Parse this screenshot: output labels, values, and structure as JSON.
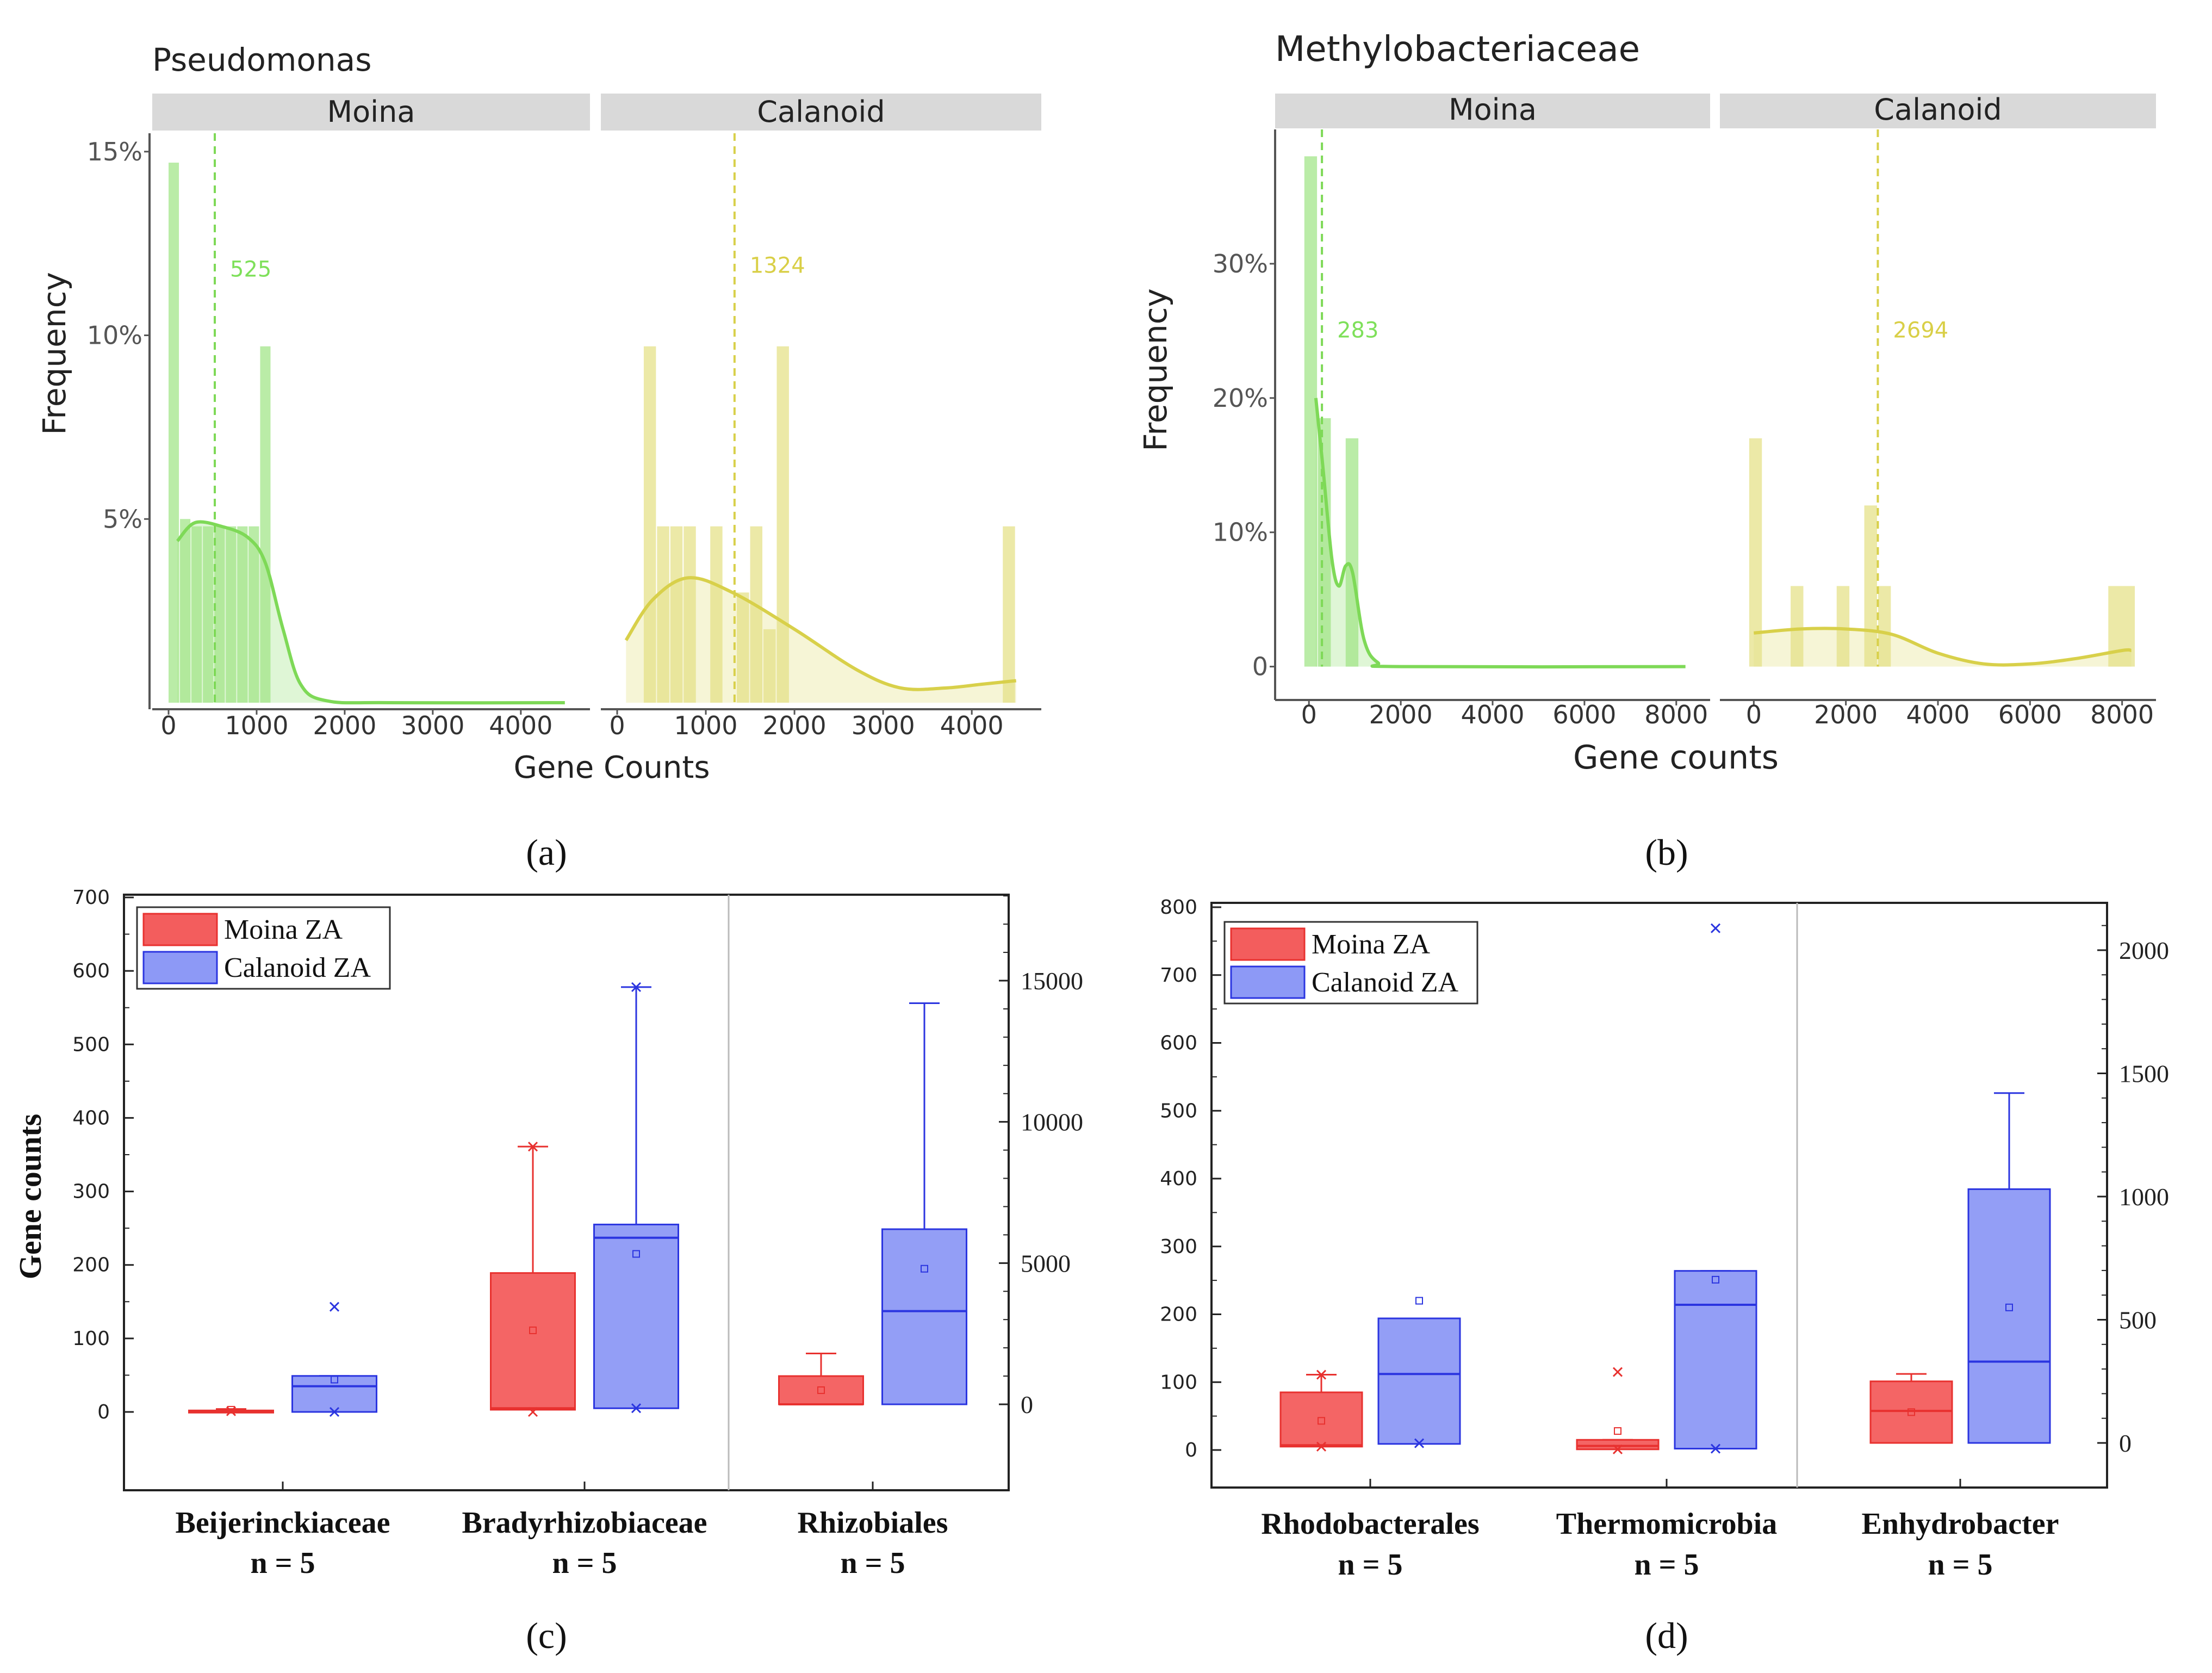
{
  "figure_labels": [
    "(a)",
    "(b)",
    "(c)",
    "(d)"
  ],
  "colors": {
    "moina_green": "#a3e68a",
    "moina_line": "#7ed957",
    "calanoid_yellow": "#e6e28a",
    "calanoid_line": "#d8d04a",
    "strip_gray": "#d9d9d9",
    "box_red": "#f35d5d",
    "box_red_edge": "#e8312f",
    "box_blue": "#8d99f6",
    "box_blue_edge": "#2b35e0"
  },
  "chart_data": [
    {
      "id": "a",
      "type": "histogram",
      "title": "Pseudomonas",
      "xlabel": "Gene Counts",
      "ylabel": "Frequency",
      "xlim": [
        0,
        4600
      ],
      "ylim": [
        0,
        15.5
      ],
      "yticks": [
        {
          "v": 5,
          "label": "5%"
        },
        {
          "v": 10,
          "label": "10%"
        },
        {
          "v": 15,
          "label": "15%"
        }
      ],
      "xticks": [
        {
          "v": 0,
          "label": "0"
        },
        {
          "v": 1000,
          "label": "1000"
        },
        {
          "v": 2000,
          "label": "2000"
        },
        {
          "v": 3000,
          "label": "3000"
        },
        {
          "v": 4000,
          "label": "4000"
        }
      ],
      "facets": [
        {
          "name": "Moina",
          "color_key": "moina",
          "bins": [
            {
              "x0": 0,
              "x1": 130,
              "y": 14.7
            },
            {
              "x0": 130,
              "x1": 260,
              "y": 5.0
            },
            {
              "x0": 260,
              "x1": 390,
              "y": 4.8
            },
            {
              "x0": 390,
              "x1": 520,
              "y": 4.8
            },
            {
              "x0": 520,
              "x1": 650,
              "y": 4.8
            },
            {
              "x0": 650,
              "x1": 780,
              "y": 4.8
            },
            {
              "x0": 780,
              "x1": 910,
              "y": 4.8
            },
            {
              "x0": 910,
              "x1": 1040,
              "y": 4.8
            },
            {
              "x0": 1040,
              "x1": 1170,
              "y": 9.7
            }
          ],
          "density": [
            [
              100,
              4.4
            ],
            [
              300,
              4.9
            ],
            [
              600,
              4.8
            ],
            [
              900,
              4.5
            ],
            [
              1100,
              3.8
            ],
            [
              1300,
              2.0
            ],
            [
              1500,
              0.5
            ],
            [
              1800,
              0.05
            ],
            [
              2500,
              0.0
            ],
            [
              4500,
              0.0
            ]
          ],
          "mean": 525,
          "mean_label": "525",
          "mean_label_y": 11.6
        },
        {
          "name": "Calanoid",
          "color_key": "calanoid",
          "bins": [
            {
              "x0": 300,
              "x1": 450,
              "y": 9.7
            },
            {
              "x0": 450,
              "x1": 600,
              "y": 4.8
            },
            {
              "x0": 600,
              "x1": 750,
              "y": 4.8
            },
            {
              "x0": 750,
              "x1": 900,
              "y": 4.8
            },
            {
              "x0": 900,
              "x1": 1050,
              "y": 0.0
            },
            {
              "x0": 1050,
              "x1": 1200,
              "y": 4.8
            },
            {
              "x0": 1200,
              "x1": 1350,
              "y": 0.0
            },
            {
              "x0": 1350,
              "x1": 1500,
              "y": 3.0
            },
            {
              "x0": 1500,
              "x1": 1650,
              "y": 4.8
            },
            {
              "x0": 1650,
              "x1": 1800,
              "y": 2.0
            },
            {
              "x0": 1800,
              "x1": 1950,
              "y": 9.7
            },
            {
              "x0": 4350,
              "x1": 4500,
              "y": 4.8
            }
          ],
          "density": [
            [
              100,
              1.7
            ],
            [
              400,
              2.8
            ],
            [
              800,
              3.4
            ],
            [
              1300,
              3.0
            ],
            [
              2000,
              2.0
            ],
            [
              2700,
              0.9
            ],
            [
              3200,
              0.4
            ],
            [
              3700,
              0.4
            ],
            [
              4100,
              0.5
            ],
            [
              4500,
              0.6
            ]
          ],
          "mean": 1324,
          "mean_label": "1324",
          "mean_label_y": 11.7
        }
      ]
    },
    {
      "id": "b",
      "type": "histogram",
      "title": "Methylobacteriaceae",
      "xlabel": "Gene counts",
      "ylabel": "Frequency",
      "xlim": [
        -500,
        8500
      ],
      "ylim": [
        -2,
        40
      ],
      "yticks": [
        {
          "v": 0,
          "label": "0"
        },
        {
          "v": 10,
          "label": "10%"
        },
        {
          "v": 20,
          "label": "20%"
        },
        {
          "v": 30,
          "label": "30%"
        }
      ],
      "xticks": [
        {
          "v": 0,
          "label": "0"
        },
        {
          "v": 2000,
          "label": "2000"
        },
        {
          "v": 4000,
          "label": "4000"
        },
        {
          "v": 6000,
          "label": "6000"
        },
        {
          "v": 8000,
          "label": "8000"
        }
      ],
      "facets": [
        {
          "name": "Moina",
          "color_key": "moina",
          "bins": [
            {
              "x0": -100,
              "x1": 200,
              "y": 38.0
            },
            {
              "x0": 200,
              "x1": 500,
              "y": 18.5
            },
            {
              "x0": 500,
              "x1": 800,
              "y": 0.0
            },
            {
              "x0": 800,
              "x1": 1100,
              "y": 17.0
            }
          ],
          "density": [
            [
              150,
              20.0
            ],
            [
              300,
              15.0
            ],
            [
              500,
              8.0
            ],
            [
              650,
              6.0
            ],
            [
              800,
              7.5
            ],
            [
              950,
              7.0
            ],
            [
              1200,
              2.0
            ],
            [
              1500,
              0.3
            ],
            [
              2000,
              0.0
            ],
            [
              8200,
              0.0
            ]
          ],
          "mean": 283,
          "mean_label": "283",
          "mean_label_y": 24.5
        },
        {
          "name": "Calanoid",
          "color_key": "calanoid",
          "bins": [
            {
              "x0": -100,
              "x1": 200,
              "y": 17.0
            },
            {
              "x0": 200,
              "x1": 800,
              "y": 0.0
            },
            {
              "x0": 800,
              "x1": 1100,
              "y": 6.0
            },
            {
              "x0": 1100,
              "x1": 1800,
              "y": 0.0
            },
            {
              "x0": 1800,
              "x1": 2100,
              "y": 6.0
            },
            {
              "x0": 2100,
              "x1": 2400,
              "y": 0.0
            },
            {
              "x0": 2400,
              "x1": 2700,
              "y": 12.0
            },
            {
              "x0": 2700,
              "x1": 3000,
              "y": 6.0
            },
            {
              "x0": 7700,
              "x1": 8300,
              "y": 6.0
            }
          ],
          "density": [
            [
              0,
              2.5
            ],
            [
              1000,
              2.8
            ],
            [
              2000,
              2.8
            ],
            [
              3000,
              2.4
            ],
            [
              4000,
              1.0
            ],
            [
              5000,
              0.2
            ],
            [
              6000,
              0.2
            ],
            [
              7000,
              0.6
            ],
            [
              8000,
              1.2
            ],
            [
              8200,
              1.2
            ]
          ],
          "mean": 2694,
          "mean_label": "2694",
          "mean_label_y": 24.5
        }
      ]
    },
    {
      "id": "c",
      "type": "box",
      "ylabel": "Gene counts",
      "yleft": {
        "min": -100,
        "max": 700,
        "ticks": [
          0,
          100,
          200,
          300,
          400,
          500,
          600,
          700
        ]
      },
      "yright": {
        "min": -1923,
        "max": 17788,
        "ticks": [
          0,
          5000,
          10000,
          15000
        ]
      },
      "legend": [
        "Moina ZA",
        "Calanoid ZA"
      ],
      "categories": [
        {
          "name": "Beijerinckiaceae",
          "n": "n = 5"
        },
        {
          "name": "Bradyrhizobiaceae",
          "n": "n = 5"
        },
        {
          "name": "Rhizobiales",
          "n": "n = 5"
        }
      ],
      "split_after": 1,
      "boxes": [
        {
          "cat": 0,
          "group": "moina",
          "axis": "left",
          "min": 0,
          "q1": 0,
          "median": 1,
          "q3": 2,
          "max": 4,
          "mean": 3,
          "outliers": [
            1
          ]
        },
        {
          "cat": 0,
          "group": "calanoid",
          "axis": "left",
          "min": 0,
          "q1": 0,
          "median": 35,
          "q3": 49,
          "max": 49,
          "mean": 44,
          "outliers": [
            143,
            0
          ]
        },
        {
          "cat": 1,
          "group": "moina",
          "axis": "left",
          "min": 3,
          "q1": 3,
          "median": 5,
          "q3": 189,
          "max": 361,
          "mean": 111,
          "outliers": [
            361,
            0
          ]
        },
        {
          "cat": 1,
          "group": "calanoid",
          "axis": "left",
          "min": 5,
          "q1": 5,
          "median": 237,
          "q3": 255,
          "max": 578,
          "mean": 215,
          "outliers": [
            578,
            5
          ]
        },
        {
          "cat": 2,
          "group": "moina",
          "axis": "right",
          "min": 0,
          "q1": 0,
          "median": 0,
          "q3": 1000,
          "max": 1800,
          "mean": 500,
          "outliers": []
        },
        {
          "cat": 2,
          "group": "calanoid",
          "axis": "right",
          "min": 0,
          "q1": 0,
          "median": 3300,
          "q3": 6200,
          "max": 14200,
          "mean": 4800,
          "outliers": []
        }
      ]
    },
    {
      "id": "d",
      "type": "box",
      "ylabel": "",
      "yleft": {
        "min": -50,
        "max": 800,
        "ticks": [
          0,
          100,
          200,
          300,
          400,
          500,
          600,
          700,
          800
        ]
      },
      "yright": {
        "min": -139,
        "max": 2223,
        "ticks": [
          0,
          500,
          1000,
          1500,
          2000
        ]
      },
      "legend": [
        "Moina ZA",
        "Calanoid ZA"
      ],
      "categories": [
        {
          "name": "Rhodobacterales",
          "n": "n = 5"
        },
        {
          "name": "Thermomicrobia",
          "n": "n = 5"
        },
        {
          "name": "Enhydrobacter",
          "n": "n = 5"
        }
      ],
      "split_after": 1,
      "boxes": [
        {
          "cat": 0,
          "group": "moina",
          "axis": "left",
          "min": 5,
          "q1": 5,
          "median": 7,
          "q3": 85,
          "max": 111,
          "mean": 43,
          "outliers": [
            111,
            5
          ]
        },
        {
          "cat": 0,
          "group": "calanoid",
          "axis": "left",
          "min": 9,
          "q1": 9,
          "median": 112,
          "q3": 194,
          "max": 194,
          "mean": 220,
          "outliers": [
            10
          ]
        },
        {
          "cat": 1,
          "group": "moina",
          "axis": "left",
          "min": 1,
          "q1": 1,
          "median": 6,
          "q3": 15,
          "max": 15,
          "mean": 28,
          "outliers": [
            115,
            1
          ]
        },
        {
          "cat": 1,
          "group": "calanoid",
          "axis": "left",
          "min": 2,
          "q1": 2,
          "median": 214,
          "q3": 264,
          "max": 264,
          "mean": 251,
          "outliers": [
            769,
            2
          ]
        },
        {
          "cat": 2,
          "group": "moina",
          "axis": "right",
          "min": 0,
          "q1": 0,
          "median": 130,
          "q3": 250,
          "max": 280,
          "mean": 125,
          "outliers": []
        },
        {
          "cat": 2,
          "group": "calanoid",
          "axis": "right",
          "min": 0,
          "q1": 0,
          "median": 330,
          "q3": 1030,
          "max": 1420,
          "mean": 550,
          "outliers": []
        }
      ]
    }
  ]
}
